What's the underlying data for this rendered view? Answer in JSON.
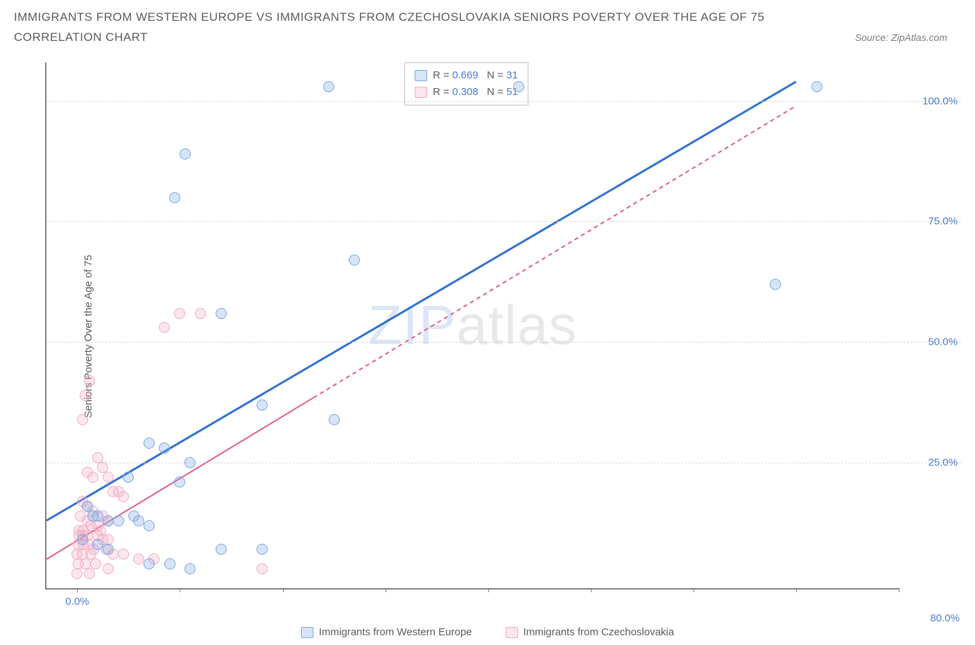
{
  "title": "IMMIGRANTS FROM WESTERN EUROPE VS IMMIGRANTS FROM CZECHOSLOVAKIA SENIORS POVERTY OVER THE AGE OF 75",
  "subtitle": "CORRELATION CHART",
  "source": "Source: ZipAtlas.com",
  "watermark_a": "ZIP",
  "watermark_b": "atlas",
  "watermark_color_a": "#dbe6f7",
  "watermark_color_b": "#e8e8e8",
  "y_label": "Seniors Poverty Over the Age of 75",
  "axis": {
    "xmin": -3,
    "xmax": 80,
    "ymin": -1,
    "ymax": 108,
    "y_ticks": [
      25,
      50,
      75,
      100
    ],
    "y_tick_labels": [
      "25.0%",
      "50.0%",
      "75.0%",
      "100.0%"
    ],
    "x_ticks": [
      0,
      10,
      20,
      30,
      40,
      50,
      60,
      70,
      80
    ],
    "x_tick_labels": {
      "0": "0.0%",
      "80": "80.0%"
    },
    "grid_color": "#d8d8d8",
    "tick_label_color": "#4a7bd0"
  },
  "series": [
    {
      "name": "Immigrants from Western Europe",
      "fill": "rgba(122,165,226,0.30)",
      "stroke": "#7aa5e2",
      "trend_color": "#2f6fd0",
      "trend_width": 3,
      "trend_dash": "",
      "trend": {
        "x1": -3,
        "y1": 13,
        "x2": 70,
        "y2": 104
      },
      "legend_R": "0.669",
      "legend_N": "31",
      "points": [
        [
          10.5,
          89
        ],
        [
          9.5,
          80
        ],
        [
          24.5,
          103
        ],
        [
          27,
          67
        ],
        [
          72,
          103
        ],
        [
          43,
          103
        ],
        [
          14,
          56
        ],
        [
          18,
          37
        ],
        [
          25,
          34
        ],
        [
          68,
          62
        ],
        [
          7,
          29
        ],
        [
          8.5,
          28
        ],
        [
          11,
          25
        ],
        [
          10,
          21
        ],
        [
          2,
          14
        ],
        [
          3,
          13
        ],
        [
          4,
          13
        ],
        [
          5.5,
          14
        ],
        [
          6,
          13
        ],
        [
          7,
          12
        ],
        [
          0.5,
          9
        ],
        [
          2,
          8
        ],
        [
          3,
          7
        ],
        [
          5,
          22
        ],
        [
          14,
          7
        ],
        [
          18,
          7
        ],
        [
          9,
          4
        ],
        [
          11,
          3
        ],
        [
          7,
          4
        ],
        [
          1,
          16
        ],
        [
          1.5,
          14
        ]
      ]
    },
    {
      "name": "Immigrants from Czechoslovakia",
      "fill": "rgba(241,172,196,0.30)",
      "stroke": "#f1acc4",
      "trend_color": "#e15a8d",
      "trend_width": 2,
      "trend_dash": "6,5",
      "trend_solid_until_x": 23,
      "trend": {
        "x1": -3,
        "y1": 5,
        "x2": 70,
        "y2": 99
      },
      "legend_R": "0.308",
      "legend_N": "51",
      "points": [
        [
          10,
          56
        ],
        [
          12,
          56
        ],
        [
          8.5,
          53
        ],
        [
          1.2,
          42
        ],
        [
          0.8,
          39
        ],
        [
          0.5,
          34
        ],
        [
          2,
          26
        ],
        [
          2.5,
          24
        ],
        [
          1,
          23
        ],
        [
          1.5,
          22
        ],
        [
          3,
          22
        ],
        [
          3.5,
          19
        ],
        [
          4,
          19
        ],
        [
          4.5,
          18
        ],
        [
          0.5,
          17
        ],
        [
          1,
          16
        ],
        [
          1.5,
          15
        ],
        [
          2.5,
          14
        ],
        [
          3,
          13
        ],
        [
          0.3,
          14
        ],
        [
          1,
          13
        ],
        [
          1.3,
          12
        ],
        [
          2,
          12
        ],
        [
          2.3,
          11
        ],
        [
          0.2,
          11
        ],
        [
          0.6,
          11
        ],
        [
          0.2,
          10
        ],
        [
          0.5,
          10
        ],
        [
          1,
          10
        ],
        [
          2,
          10
        ],
        [
          2.5,
          9
        ],
        [
          3,
          9
        ],
        [
          0.1,
          8
        ],
        [
          0.6,
          8
        ],
        [
          1.1,
          8
        ],
        [
          1.6,
          7
        ],
        [
          2.8,
          7
        ],
        [
          0.0,
          6
        ],
        [
          0.5,
          6
        ],
        [
          1.3,
          6
        ],
        [
          3.5,
          6
        ],
        [
          4.5,
          6
        ],
        [
          6,
          5
        ],
        [
          0.1,
          4
        ],
        [
          0.8,
          4
        ],
        [
          1.8,
          4
        ],
        [
          7.5,
          5
        ],
        [
          0.0,
          2
        ],
        [
          1.2,
          2
        ],
        [
          3,
          3
        ],
        [
          18,
          3
        ]
      ]
    }
  ]
}
